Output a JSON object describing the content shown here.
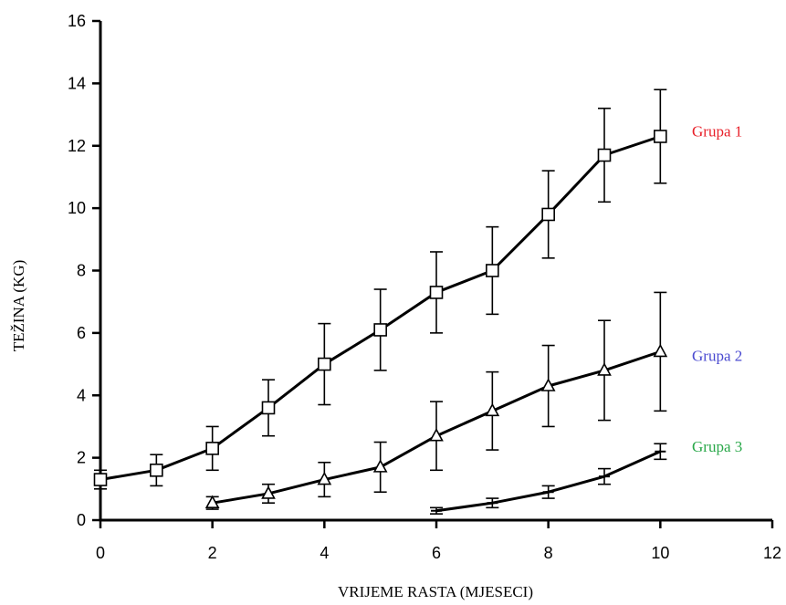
{
  "chart_data": {
    "type": "line",
    "xlabel": "VRIJEME RASTA (MJESECI)",
    "ylabel": "TEŽINA (KG)",
    "xlim": [
      0,
      12
    ],
    "ylim": [
      0,
      16
    ],
    "xticks": [
      0,
      2,
      4,
      6,
      8,
      10,
      12
    ],
    "yticks": [
      0,
      2,
      4,
      6,
      8,
      10,
      12,
      14,
      16
    ],
    "grid": false,
    "legend": "right, beside series ends",
    "series": [
      {
        "name": "Grupa 1",
        "label_color": "#e8202a",
        "marker": "square",
        "x": [
          0,
          1,
          2,
          3,
          4,
          5,
          6,
          7,
          8,
          9,
          10
        ],
        "y": [
          1.3,
          1.6,
          2.3,
          3.6,
          5.0,
          6.1,
          7.3,
          8.0,
          9.8,
          11.7,
          12.3
        ],
        "err": [
          0.3,
          0.5,
          0.7,
          0.9,
          1.3,
          1.3,
          1.3,
          1.4,
          1.4,
          1.5,
          1.5
        ]
      },
      {
        "name": "Grupa 2",
        "label_color": "#4a4ad0",
        "marker": "triangle",
        "x": [
          2,
          3,
          4,
          5,
          6,
          7,
          8,
          9,
          10
        ],
        "y": [
          0.55,
          0.85,
          1.3,
          1.7,
          2.7,
          3.5,
          4.3,
          4.8,
          5.4
        ],
        "err": [
          0.2,
          0.3,
          0.55,
          0.8,
          1.1,
          1.25,
          1.3,
          1.6,
          1.9
        ]
      },
      {
        "name": "Grupa 3",
        "label_color": "#2aa84a",
        "marker": "plus",
        "x": [
          6,
          7,
          8,
          9,
          10
        ],
        "y": [
          0.3,
          0.55,
          0.9,
          1.4,
          2.2
        ],
        "err": [
          0.1,
          0.15,
          0.2,
          0.25,
          0.25
        ]
      }
    ]
  }
}
